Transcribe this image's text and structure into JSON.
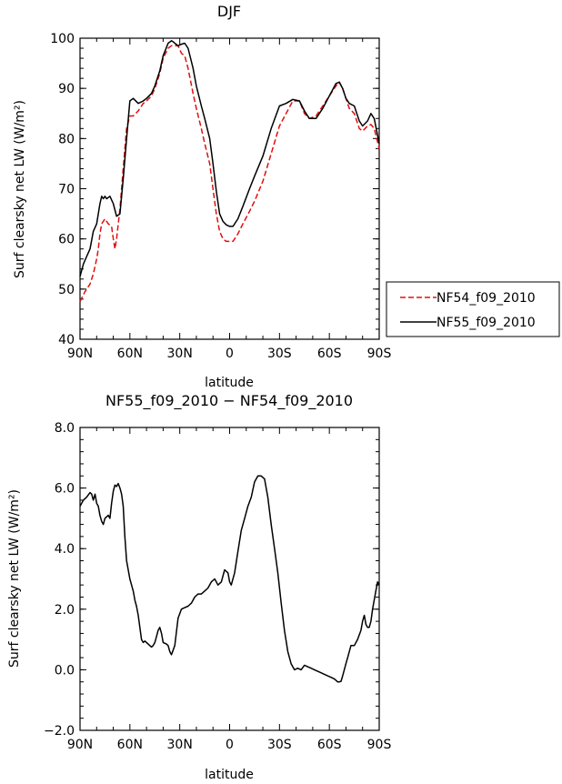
{
  "chart_data": [
    {
      "type": "line",
      "title": "DJF",
      "xlabel": "latitude",
      "ylabel": "Surf clearsky net LW (W/m²)",
      "xlim": [
        -90,
        90
      ],
      "ylim": [
        40,
        100
      ],
      "xtick_values": [
        -90,
        -60,
        -30,
        0,
        30,
        60,
        90
      ],
      "xticks": [
        "90N",
        "60N",
        "30N",
        "0",
        "30S",
        "60S",
        "90S"
      ],
      "ytick_values": [
        40,
        50,
        60,
        70,
        80,
        90,
        100
      ],
      "yticks": [
        "40",
        "50",
        "60",
        "70",
        "80",
        "90",
        "100"
      ],
      "legend_position": "right",
      "series": [
        {
          "name": "NF54_f09_2010",
          "color": "#e01010",
          "dash": "dashed",
          "x": [
            -90,
            -87,
            -84,
            -82,
            -80,
            -79,
            -78,
            -77,
            -76,
            -75,
            -73,
            -71,
            -70,
            -69,
            -68,
            -66,
            -64,
            -62,
            -60,
            -58,
            -55,
            -52,
            -50,
            -47,
            -45,
            -42,
            -40,
            -37,
            -35,
            -33,
            -31,
            -29,
            -27,
            -25,
            -22,
            -20,
            -17,
            -15,
            -12,
            -10,
            -8,
            -6,
            -4,
            -2,
            0,
            2,
            5,
            8,
            12,
            15,
            20,
            25,
            30,
            34,
            38,
            42,
            45,
            48,
            52,
            56,
            60,
            64,
            66,
            68,
            70,
            72,
            75,
            78,
            80,
            83,
            85,
            87,
            90
          ],
          "y": [
            47.5,
            49.5,
            51,
            53,
            56,
            58,
            61,
            63,
            63.5,
            64,
            63,
            62.5,
            60,
            58,
            60,
            66,
            74,
            82,
            84.5,
            84.5,
            85.5,
            87,
            87.5,
            88.5,
            90,
            93,
            96,
            98,
            98.5,
            98.5,
            98.5,
            97,
            96.5,
            94,
            89,
            86,
            82,
            79,
            75,
            70,
            65,
            61.5,
            60,
            59.5,
            59.5,
            59.5,
            61,
            63,
            65.5,
            67.5,
            71.5,
            77,
            82.5,
            85,
            87.5,
            87.5,
            85,
            84,
            84.5,
            86.5,
            88.5,
            90.5,
            91.3,
            90,
            88,
            86,
            85,
            82,
            81.5,
            82.5,
            82.8,
            82,
            78
          ]
        },
        {
          "name": "NF55_f09_2010",
          "color": "#000000",
          "dash": "solid",
          "x": [
            -90,
            -88,
            -86,
            -84,
            -82,
            -80,
            -78,
            -77,
            -76,
            -75,
            -74,
            -72,
            -70,
            -68,
            -66,
            -64,
            -62,
            -60,
            -58,
            -55,
            -52,
            -50,
            -47,
            -45,
            -42,
            -40,
            -37,
            -35,
            -34,
            -33,
            -31,
            -29,
            -27,
            -25,
            -22,
            -20,
            -17,
            -15,
            -12,
            -10,
            -8,
            -6,
            -4,
            -2,
            0,
            2,
            5,
            8,
            12,
            15,
            20,
            25,
            30,
            34,
            38,
            42,
            45,
            48,
            52,
            56,
            60,
            64,
            66,
            68,
            70,
            72,
            75,
            78,
            80,
            83,
            85,
            87,
            90
          ],
          "y": [
            52.5,
            55,
            56.5,
            58,
            61.5,
            63,
            67,
            68.5,
            68,
            68.5,
            68,
            68.5,
            67,
            64.5,
            65,
            72,
            80,
            87.5,
            88,
            87,
            87.5,
            88,
            89,
            90.5,
            93.5,
            96.5,
            99,
            99.5,
            99.3,
            99,
            98.5,
            98.8,
            99,
            98,
            94,
            90.5,
            86.5,
            84,
            80,
            75,
            69.5,
            65,
            63.5,
            62.8,
            62.5,
            62.5,
            64,
            66.5,
            70,
            72.5,
            76.5,
            82,
            86.5,
            87,
            87.8,
            87.5,
            85.5,
            84,
            84,
            86,
            88.5,
            91,
            91.2,
            90,
            88,
            87,
            86.5,
            83.5,
            82.5,
            83.5,
            85,
            84,
            79
          ]
        }
      ]
    },
    {
      "type": "line",
      "title": "NF55_f09_2010 − NF54_f09_2010",
      "xlabel": "latitude",
      "ylabel": "Surf clearsky net LW (W/m²)",
      "xlim": [
        -90,
        90
      ],
      "ylim": [
        -2,
        8
      ],
      "xtick_values": [
        -90,
        -60,
        -30,
        0,
        30,
        60,
        90
      ],
      "xticks": [
        "90N",
        "60N",
        "30N",
        "0",
        "30S",
        "60S",
        "90S"
      ],
      "ytick_values": [
        -2,
        0,
        2,
        4,
        6,
        8
      ],
      "yticks": [
        "−2.0",
        "0.0",
        "2.0",
        "4.0",
        "6.0",
        "8.0"
      ],
      "series": [
        {
          "color": "#000000",
          "dash": "solid",
          "x": [
            -90,
            -89,
            -88,
            -86,
            -84,
            -83,
            -82,
            -81,
            -80,
            -79,
            -78,
            -77,
            -76,
            -75,
            -73,
            -72,
            -71,
            -70,
            -69,
            -68,
            -67,
            -66,
            -65,
            -64,
            -63,
            -62,
            -60,
            -58,
            -57,
            -56,
            -55,
            -54,
            -53,
            -52,
            -51,
            -50,
            -49,
            -48,
            -47,
            -46,
            -45,
            -44,
            -43,
            -42,
            -41,
            -40,
            -38,
            -37,
            -36,
            -35,
            -34,
            -33,
            -31,
            -29,
            -27,
            -25,
            -23,
            -21,
            -19,
            -17,
            -15,
            -13,
            -11,
            -9,
            -7,
            -5,
            -3,
            -1,
            0,
            1,
            3,
            5,
            7,
            9,
            11,
            13,
            15,
            17,
            19,
            21,
            23,
            25,
            27,
            29,
            31,
            33,
            35,
            37,
            39,
            41,
            43,
            45,
            47,
            49,
            51,
            53,
            55,
            57,
            59,
            61,
            63,
            64,
            65,
            66,
            67,
            68,
            69,
            70,
            71,
            72,
            73,
            75,
            77,
            79,
            80,
            81,
            82,
            83,
            84,
            85,
            86,
            87,
            88,
            89,
            90
          ],
          "y": [
            5.4,
            5.5,
            5.6,
            5.7,
            5.85,
            5.8,
            5.6,
            5.8,
            5.5,
            5.4,
            5.1,
            4.9,
            4.8,
            5.0,
            5.1,
            5.0,
            5.5,
            5.9,
            6.1,
            6.05,
            6.15,
            6.0,
            5.8,
            5.4,
            4.4,
            3.6,
            3.0,
            2.6,
            2.3,
            2.1,
            1.8,
            1.4,
            1.0,
            0.9,
            0.95,
            0.9,
            0.85,
            0.8,
            0.75,
            0.8,
            0.9,
            1.1,
            1.3,
            1.4,
            1.2,
            0.9,
            0.85,
            0.8,
            0.6,
            0.5,
            0.65,
            0.8,
            1.7,
            2.0,
            2.05,
            2.1,
            2.2,
            2.4,
            2.5,
            2.5,
            2.6,
            2.7,
            2.9,
            3.0,
            2.8,
            2.9,
            3.3,
            3.2,
            2.9,
            2.8,
            3.2,
            3.9,
            4.6,
            5.0,
            5.4,
            5.7,
            6.2,
            6.4,
            6.4,
            6.3,
            5.7,
            4.8,
            4.0,
            3.2,
            2.2,
            1.3,
            0.6,
            0.2,
            0.0,
            0.05,
            0.0,
            0.15,
            0.1,
            0.05,
            0.0,
            -0.05,
            -0.1,
            -0.15,
            -0.2,
            -0.25,
            -0.3,
            -0.35,
            -0.4,
            -0.4,
            -0.38,
            -0.2,
            0.0,
            0.2,
            0.4,
            0.6,
            0.8,
            0.8,
            1.0,
            1.3,
            1.6,
            1.8,
            1.5,
            1.4,
            1.4,
            1.6,
            2.0,
            2.3,
            2.6,
            2.9,
            2.8
          ]
        }
      ]
    }
  ]
}
